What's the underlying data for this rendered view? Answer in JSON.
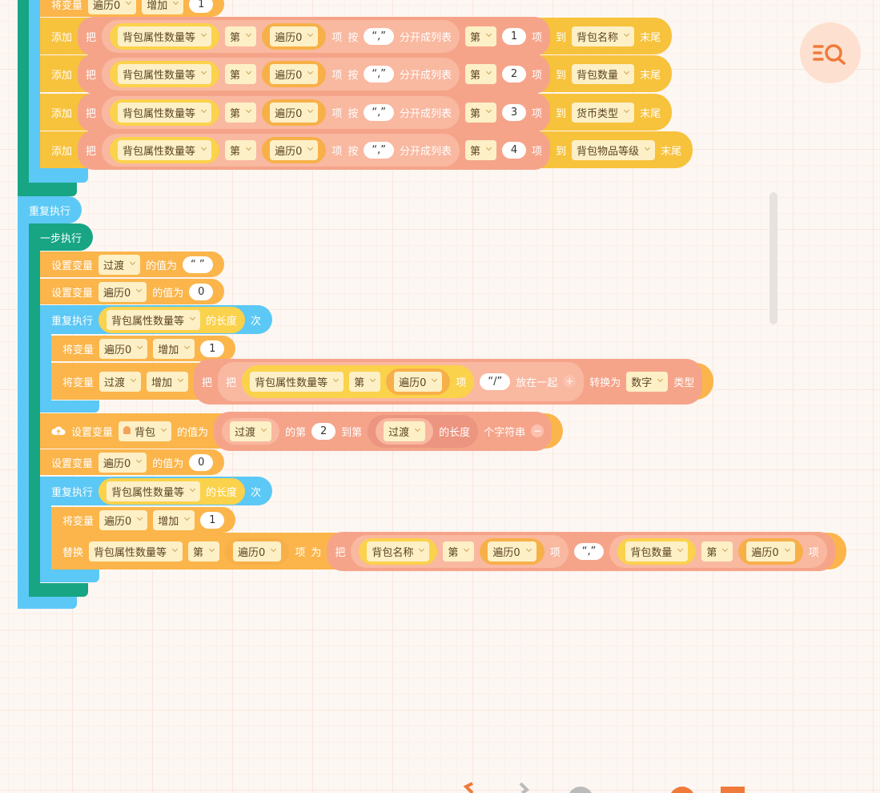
{
  "rows": [
    {
      "text": [
        "将变量",
        "遍历0",
        "增加",
        "1"
      ]
    },
    {
      "text": [
        "添加",
        "把",
        "背包属性数量等",
        "第",
        "遍历0",
        "项",
        "按",
        "“,”",
        "分开成列表",
        "第",
        "1",
        "项",
        "到",
        "背包名称",
        "末尾"
      ]
    },
    {
      "text": [
        "添加",
        "把",
        "背包属性数量等",
        "第",
        "遍历0",
        "项",
        "按",
        "“,”",
        "分开成列表",
        "第",
        "2",
        "项",
        "到",
        "背包数量",
        "末尾"
      ]
    },
    {
      "text": [
        "添加",
        "把",
        "背包属性数量等",
        "第",
        "遍历0",
        "项",
        "按",
        "“,”",
        "分开成列表",
        "第",
        "3",
        "项",
        "到",
        "货币类型",
        "末尾"
      ]
    },
    {
      "text": [
        "添加",
        "把",
        "背包属性数量等",
        "第",
        "遍历0",
        "项",
        "按",
        "“,”",
        "分开成列表",
        "第",
        "4",
        "项",
        "到",
        "背包物品等级",
        "末尾"
      ]
    },
    {
      "text": [
        "重复执行"
      ]
    },
    {
      "text": [
        "一步执行"
      ]
    },
    {
      "text": [
        "设置变量",
        "过渡",
        "的值为",
        "“ ”"
      ]
    },
    {
      "text": [
        "设置变量",
        "遍历0",
        "的值为",
        "0"
      ]
    },
    {
      "text": [
        "重复执行",
        "背包属性数量等",
        "的长度",
        "次"
      ]
    },
    {
      "text": [
        "将变量",
        "遍历0",
        "增加",
        "1"
      ]
    },
    {
      "text": [
        "将变量",
        "过渡",
        "增加",
        "把",
        "把",
        "背包属性数量等",
        "第",
        "遍历0",
        "项",
        "“/”",
        "放在一起",
        "+",
        "转换为",
        "数字",
        "类型"
      ]
    },
    {
      "text": [
        "设置变量",
        "背包",
        "的值为",
        "过渡",
        "的第",
        "2",
        "到第",
        "过渡",
        "的长度",
        "个字符串",
        "−"
      ]
    },
    {
      "text": [
        "设置变量",
        "遍历0",
        "的值为",
        "0"
      ]
    },
    {
      "text": [
        "重复执行",
        "背包属性数量等",
        "的长度",
        "次"
      ]
    },
    {
      "text": [
        "将变量",
        "遍历0",
        "增加",
        "1"
      ]
    },
    {
      "text": [
        "替换",
        "背包属性数量等",
        "第",
        "遍历0",
        "项",
        "为",
        "把",
        "背包名称",
        "第",
        "遍历0",
        "项",
        "“,”",
        "背包数量",
        "第",
        "遍历0",
        "项"
      ]
    }
  ]
}
